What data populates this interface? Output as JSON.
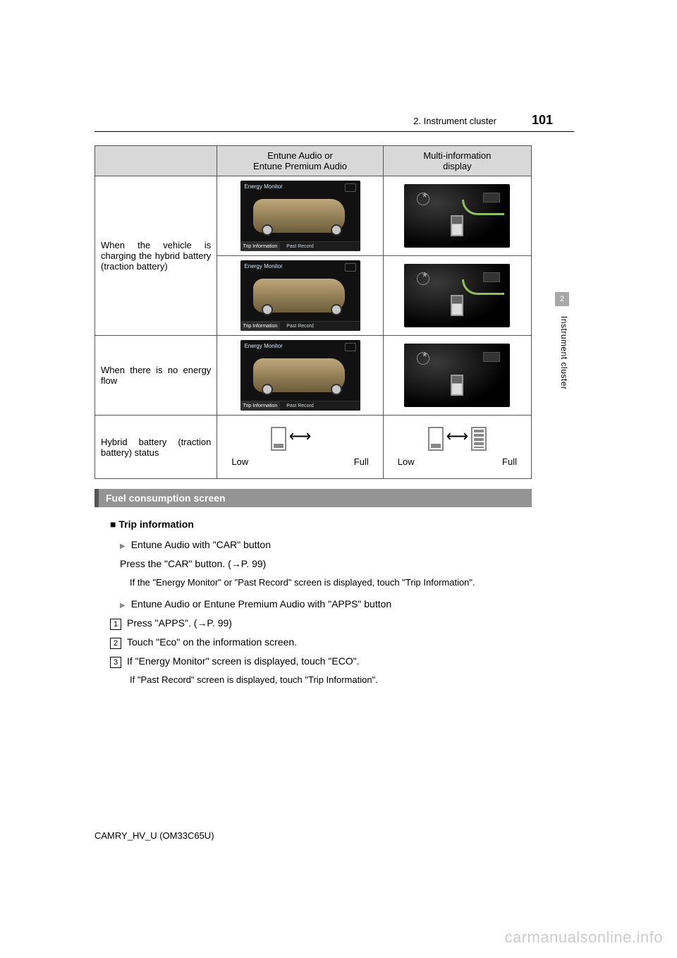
{
  "header": {
    "section_label": "2. Instrument cluster",
    "page_number": "101",
    "side_tab_number": "2",
    "side_tab_label": "Instrument cluster"
  },
  "table": {
    "columns": [
      "",
      "Entune Audio or\nEntune Premium Audio",
      "Multi-information\ndisplay"
    ],
    "rows": [
      {
        "desc": "When the vehicle is charging the hybrid battery (traction battery)",
        "entune_count": 2,
        "mid_arrow": true
      },
      {
        "desc": "When there is no energy flow",
        "entune_count": 1,
        "mid_arrow": false
      },
      {
        "desc": "Hybrid battery (traction battery) status",
        "status_row": true
      }
    ],
    "screen": {
      "title": "Energy Monitor",
      "tabs": [
        "Trip Information",
        "Past Record",
        ""
      ]
    },
    "status": {
      "low_label": "Low",
      "full_label": "Full"
    }
  },
  "section_bar": "Fuel consumption screen",
  "content": {
    "h3": "Trip information",
    "bullet1": "Entune Audio with \"CAR\" button",
    "line1": "Press the \"CAR\" button. (→P. 99)",
    "sub1": "If the \"Energy Monitor\" or \"Past Record\" screen is displayed, touch \"Trip Information\".",
    "bullet2": "Entune Audio or Entune Premium Audio with \"APPS\" button",
    "steps": [
      "Press \"APPS\". (→P. 99)",
      "Touch \"Eco\" on the information screen.",
      "If \"Energy Monitor\" screen is displayed, touch \"ECO\"."
    ],
    "sub2": "If \"Past Record\" screen is displayed, touch \"Trip Information\"."
  },
  "footer": "CAMRY_HV_U (OM33C65U)",
  "watermark": "carmanualsonline.info",
  "colors": {
    "header_bg": "#d8d8d8",
    "section_bar_bg": "#949494",
    "triangle": "#888888",
    "watermark": "#cccccc"
  }
}
